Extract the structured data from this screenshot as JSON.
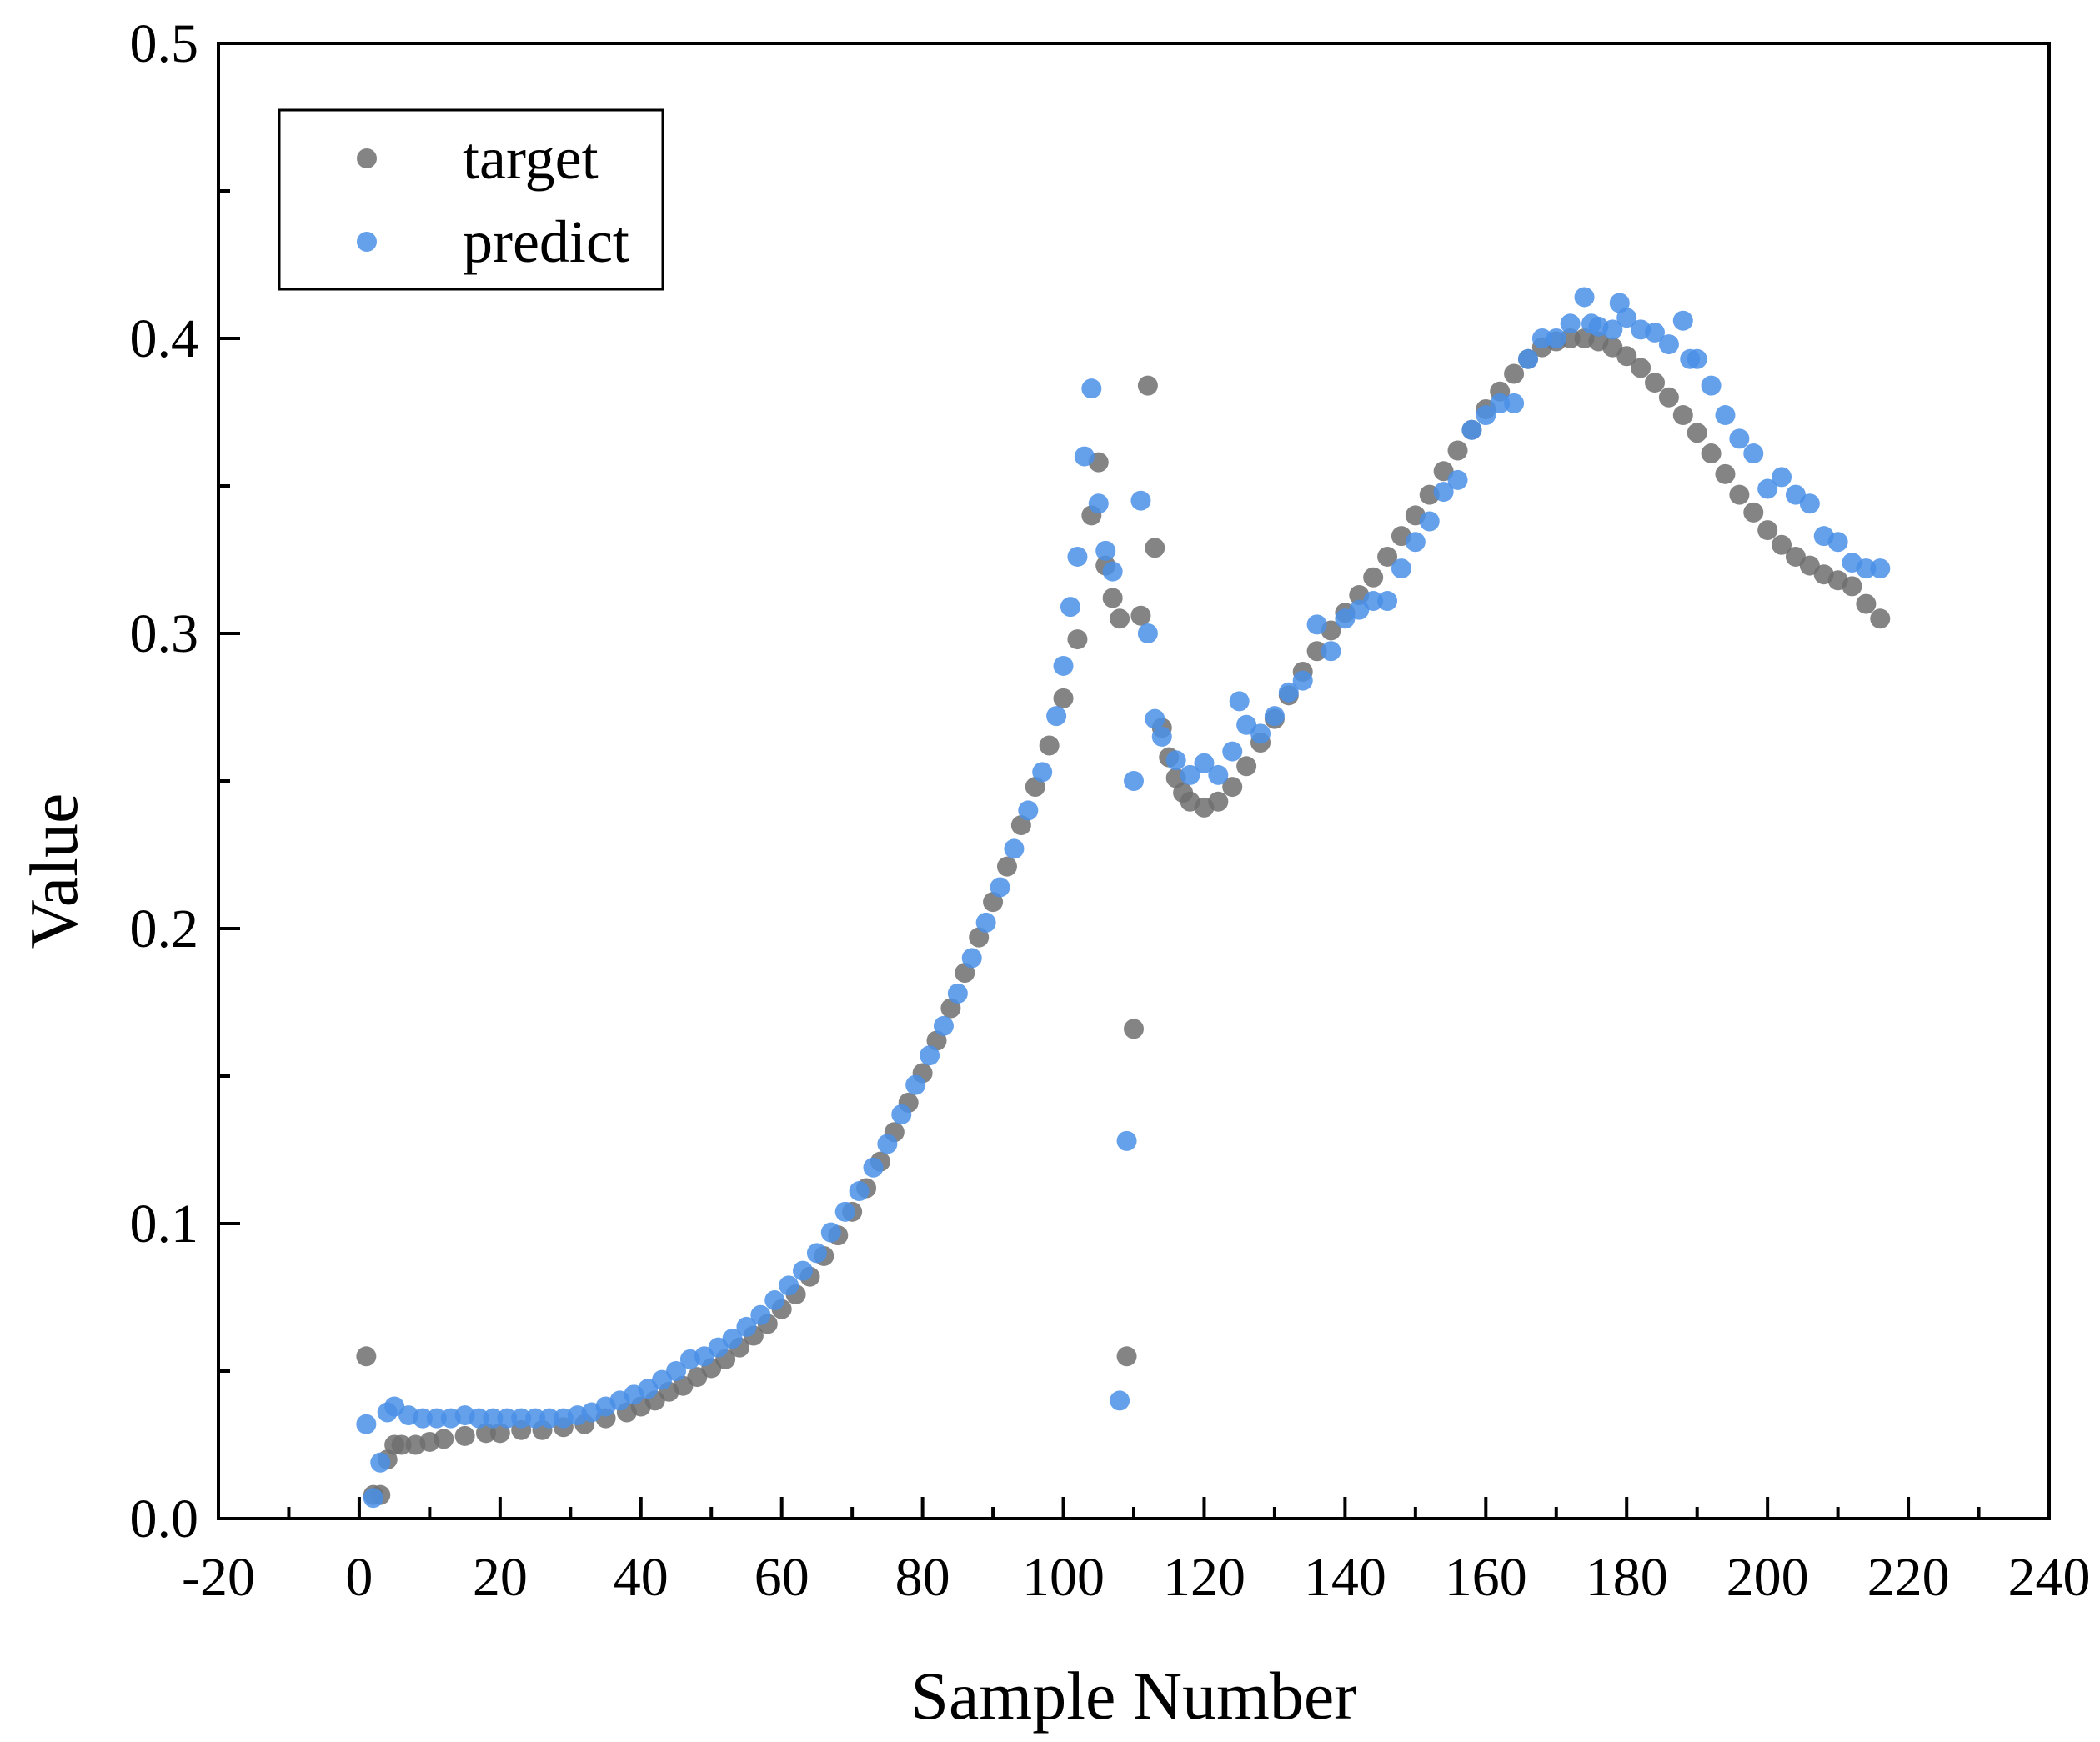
{
  "chart_data": {
    "type": "scatter",
    "title": "",
    "xlabel": "Sample Number",
    "ylabel": "Value",
    "xlim": [
      -20,
      240
    ],
    "ylim": [
      0.0,
      0.5
    ],
    "xticks": [
      -20,
      0,
      20,
      40,
      60,
      80,
      100,
      120,
      140,
      160,
      180,
      200,
      220,
      240
    ],
    "xtick_labels": [
      "-20",
      "0",
      "20",
      "40",
      "60",
      "80",
      "100",
      "120",
      "140",
      "160",
      "180",
      "200",
      "220",
      "240"
    ],
    "yticks": [
      0.0,
      0.1,
      0.2,
      0.3,
      0.4,
      0.5
    ],
    "ytick_labels": [
      "0.0",
      "0.1",
      "0.2",
      "0.3",
      "0.4",
      "0.5"
    ],
    "grid": false,
    "legend_position": "top-left",
    "series": [
      {
        "name": "target",
        "color": "#6e6e6e",
        "points": [
          [
            1,
            0.055
          ],
          [
            2,
            0.008
          ],
          [
            3,
            0.008
          ],
          [
            4,
            0.02
          ],
          [
            5,
            0.025
          ],
          [
            6,
            0.025
          ],
          [
            8,
            0.025
          ],
          [
            10,
            0.026
          ],
          [
            12,
            0.027
          ],
          [
            15,
            0.028
          ],
          [
            18,
            0.029
          ],
          [
            20,
            0.029
          ],
          [
            23,
            0.03
          ],
          [
            26,
            0.03
          ],
          [
            29,
            0.031
          ],
          [
            32,
            0.032
          ],
          [
            35,
            0.034
          ],
          [
            38,
            0.036
          ],
          [
            40,
            0.038
          ],
          [
            42,
            0.04
          ],
          [
            44,
            0.043
          ],
          [
            46,
            0.045
          ],
          [
            48,
            0.048
          ],
          [
            50,
            0.051
          ],
          [
            52,
            0.054
          ],
          [
            54,
            0.058
          ],
          [
            56,
            0.062
          ],
          [
            58,
            0.066
          ],
          [
            60,
            0.071
          ],
          [
            62,
            0.076
          ],
          [
            64,
            0.082
          ],
          [
            66,
            0.089
          ],
          [
            68,
            0.096
          ],
          [
            70,
            0.104
          ],
          [
            72,
            0.112
          ],
          [
            74,
            0.121
          ],
          [
            76,
            0.131
          ],
          [
            78,
            0.141
          ],
          [
            80,
            0.151
          ],
          [
            82,
            0.162
          ],
          [
            84,
            0.173
          ],
          [
            86,
            0.185
          ],
          [
            88,
            0.197
          ],
          [
            90,
            0.209
          ],
          [
            92,
            0.221
          ],
          [
            94,
            0.235
          ],
          [
            96,
            0.248
          ],
          [
            98,
            0.262
          ],
          [
            100,
            0.278
          ],
          [
            102,
            0.298
          ],
          [
            104,
            0.34
          ],
          [
            105,
            0.358
          ],
          [
            106,
            0.323
          ],
          [
            107,
            0.312
          ],
          [
            108,
            0.305
          ],
          [
            109,
            0.055
          ],
          [
            110,
            0.166
          ],
          [
            111,
            0.306
          ],
          [
            112,
            0.384
          ],
          [
            113,
            0.329
          ],
          [
            114,
            0.268
          ],
          [
            115,
            0.258
          ],
          [
            116,
            0.251
          ],
          [
            117,
            0.246
          ],
          [
            118,
            0.243
          ],
          [
            120,
            0.241
          ],
          [
            122,
            0.243
          ],
          [
            124,
            0.248
          ],
          [
            126,
            0.255
          ],
          [
            128,
            0.263
          ],
          [
            130,
            0.271
          ],
          [
            132,
            0.279
          ],
          [
            134,
            0.287
          ],
          [
            136,
            0.294
          ],
          [
            138,
            0.301
          ],
          [
            140,
            0.307
          ],
          [
            142,
            0.313
          ],
          [
            144,
            0.319
          ],
          [
            146,
            0.326
          ],
          [
            148,
            0.333
          ],
          [
            150,
            0.34
          ],
          [
            152,
            0.347
          ],
          [
            154,
            0.355
          ],
          [
            156,
            0.362
          ],
          [
            158,
            0.369
          ],
          [
            160,
            0.376
          ],
          [
            162,
            0.382
          ],
          [
            164,
            0.388
          ],
          [
            166,
            0.393
          ],
          [
            168,
            0.397
          ],
          [
            170,
            0.399
          ],
          [
            172,
            0.4
          ],
          [
            174,
            0.4
          ],
          [
            176,
            0.399
          ],
          [
            178,
            0.397
          ],
          [
            180,
            0.394
          ],
          [
            182,
            0.39
          ],
          [
            184,
            0.385
          ],
          [
            186,
            0.38
          ],
          [
            188,
            0.374
          ],
          [
            190,
            0.368
          ],
          [
            192,
            0.361
          ],
          [
            194,
            0.354
          ],
          [
            196,
            0.347
          ],
          [
            198,
            0.341
          ],
          [
            200,
            0.335
          ],
          [
            202,
            0.33
          ],
          [
            204,
            0.326
          ],
          [
            206,
            0.323
          ],
          [
            208,
            0.32
          ],
          [
            210,
            0.318
          ],
          [
            212,
            0.316
          ],
          [
            214,
            0.31
          ],
          [
            216,
            0.305
          ]
        ]
      },
      {
        "name": "predict",
        "color": "#4a8fe7",
        "points": [
          [
            1,
            0.032
          ],
          [
            2,
            0.007
          ],
          [
            3,
            0.019
          ],
          [
            4,
            0.036
          ],
          [
            5,
            0.038
          ],
          [
            7,
            0.035
          ],
          [
            9,
            0.034
          ],
          [
            11,
            0.034
          ],
          [
            13,
            0.034
          ],
          [
            15,
            0.035
          ],
          [
            17,
            0.034
          ],
          [
            19,
            0.034
          ],
          [
            21,
            0.034
          ],
          [
            23,
            0.034
          ],
          [
            25,
            0.034
          ],
          [
            27,
            0.034
          ],
          [
            29,
            0.034
          ],
          [
            31,
            0.035
          ],
          [
            33,
            0.036
          ],
          [
            35,
            0.038
          ],
          [
            37,
            0.04
          ],
          [
            39,
            0.042
          ],
          [
            41,
            0.044
          ],
          [
            43,
            0.047
          ],
          [
            45,
            0.05
          ],
          [
            47,
            0.054
          ],
          [
            49,
            0.055
          ],
          [
            51,
            0.058
          ],
          [
            53,
            0.061
          ],
          [
            55,
            0.065
          ],
          [
            57,
            0.069
          ],
          [
            59,
            0.074
          ],
          [
            61,
            0.079
          ],
          [
            63,
            0.084
          ],
          [
            65,
            0.09
          ],
          [
            67,
            0.097
          ],
          [
            69,
            0.104
          ],
          [
            71,
            0.111
          ],
          [
            73,
            0.119
          ],
          [
            75,
            0.127
          ],
          [
            77,
            0.137
          ],
          [
            79,
            0.147
          ],
          [
            81,
            0.157
          ],
          [
            83,
            0.167
          ],
          [
            85,
            0.178
          ],
          [
            87,
            0.19
          ],
          [
            89,
            0.202
          ],
          [
            91,
            0.214
          ],
          [
            93,
            0.227
          ],
          [
            95,
            0.24
          ],
          [
            97,
            0.253
          ],
          [
            99,
            0.272
          ],
          [
            100,
            0.289
          ],
          [
            101,
            0.309
          ],
          [
            102,
            0.326
          ],
          [
            103,
            0.36
          ],
          [
            104,
            0.383
          ],
          [
            105,
            0.344
          ],
          [
            106,
            0.328
          ],
          [
            107,
            0.321
          ],
          [
            108,
            0.04
          ],
          [
            109,
            0.128
          ],
          [
            110,
            0.25
          ],
          [
            111,
            0.345
          ],
          [
            112,
            0.3
          ],
          [
            113,
            0.271
          ],
          [
            114,
            0.265
          ],
          [
            116,
            0.257
          ],
          [
            118,
            0.252
          ],
          [
            120,
            0.256
          ],
          [
            122,
            0.252
          ],
          [
            124,
            0.26
          ],
          [
            125,
            0.277
          ],
          [
            126,
            0.269
          ],
          [
            128,
            0.266
          ],
          [
            130,
            0.272
          ],
          [
            132,
            0.28
          ],
          [
            134,
            0.284
          ],
          [
            136,
            0.303
          ],
          [
            138,
            0.294
          ],
          [
            140,
            0.305
          ],
          [
            142,
            0.308
          ],
          [
            144,
            0.311
          ],
          [
            146,
            0.311
          ],
          [
            148,
            0.322
          ],
          [
            150,
            0.331
          ],
          [
            152,
            0.338
          ],
          [
            154,
            0.348
          ],
          [
            156,
            0.352
          ],
          [
            158,
            0.369
          ],
          [
            160,
            0.374
          ],
          [
            162,
            0.378
          ],
          [
            164,
            0.378
          ],
          [
            166,
            0.393
          ],
          [
            168,
            0.4
          ],
          [
            170,
            0.4
          ],
          [
            172,
            0.405
          ],
          [
            174,
            0.414
          ],
          [
            175,
            0.405
          ],
          [
            176,
            0.404
          ],
          [
            178,
            0.403
          ],
          [
            179,
            0.412
          ],
          [
            180,
            0.407
          ],
          [
            182,
            0.403
          ],
          [
            184,
            0.402
          ],
          [
            186,
            0.398
          ],
          [
            188,
            0.406
          ],
          [
            189,
            0.393
          ],
          [
            190,
            0.393
          ],
          [
            192,
            0.384
          ],
          [
            194,
            0.374
          ],
          [
            196,
            0.366
          ],
          [
            198,
            0.361
          ],
          [
            200,
            0.349
          ],
          [
            202,
            0.353
          ],
          [
            204,
            0.347
          ],
          [
            206,
            0.344
          ],
          [
            208,
            0.333
          ],
          [
            210,
            0.331
          ],
          [
            212,
            0.324
          ],
          [
            214,
            0.322
          ],
          [
            216,
            0.322
          ]
        ]
      }
    ]
  }
}
